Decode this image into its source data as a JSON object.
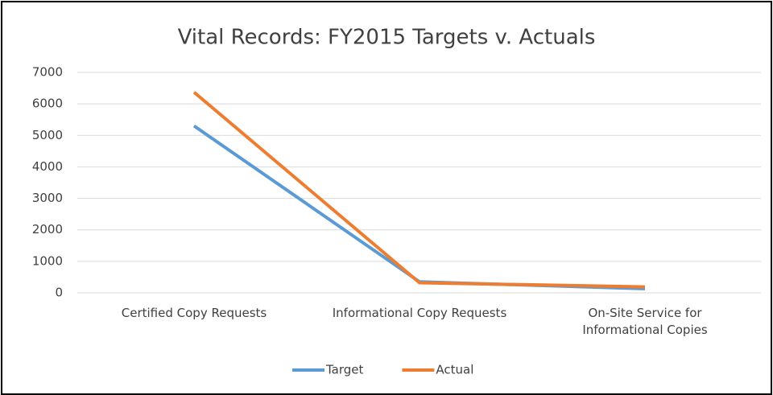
{
  "chart_data": {
    "type": "line",
    "title": "Vital Records: FY2015 Targets v. Actuals",
    "categories": [
      "Certified Copy Requests",
      "Informational Copy Requests",
      "On-Site Service for Informational Copies"
    ],
    "series": [
      {
        "name": "Target",
        "color": "#5b9bd5",
        "values": [
          5300,
          350,
          130
        ]
      },
      {
        "name": "Actual",
        "color": "#ed7d31",
        "values": [
          6370,
          320,
          190
        ]
      }
    ],
    "ylim": [
      0,
      7000
    ],
    "yticks": [
      0,
      1000,
      2000,
      3000,
      4000,
      5000,
      6000,
      7000
    ],
    "grid": true,
    "legend": "bottom"
  }
}
